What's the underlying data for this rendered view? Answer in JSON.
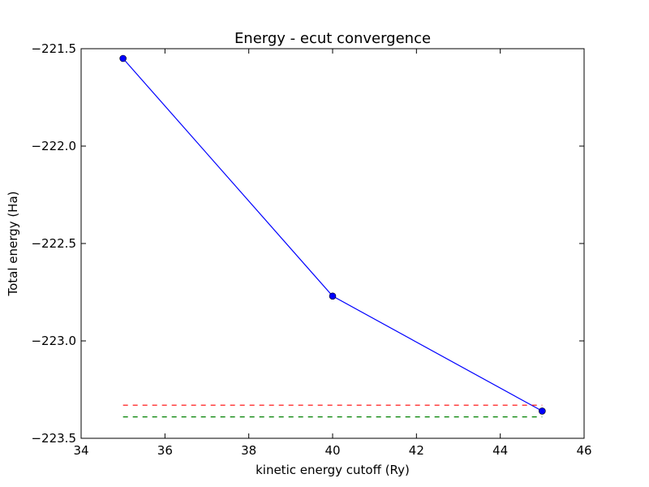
{
  "chart_data": {
    "type": "line",
    "title": "Energy - ecut convergence",
    "xlabel": "kinetic energy cutoff (Ry)",
    "ylabel": "Total energy (Ha)",
    "xlim": [
      34,
      46
    ],
    "ylim": [
      -223.5,
      -221.5
    ],
    "xticks": [
      34,
      36,
      38,
      40,
      42,
      44,
      46
    ],
    "yticks": [
      -221.5,
      -222.0,
      -222.5,
      -223.0,
      -223.5
    ],
    "xtick_labels": [
      "34",
      "36",
      "38",
      "40",
      "42",
      "44",
      "46"
    ],
    "ytick_labels": [
      "−221.5",
      "−222.0",
      "−222.5",
      "−223.0",
      "−223.5"
    ],
    "grid": false,
    "series": [
      {
        "x": [
          35,
          40,
          45
        ],
        "y": [
          -221.55,
          -222.77,
          -223.36
        ],
        "color": "#0000ff",
        "style": "solid",
        "markers": true
      },
      {
        "x": [
          35,
          45
        ],
        "y": [
          -223.33,
          -223.33
        ],
        "color": "#ff0000",
        "style": "dashed",
        "markers": false
      },
      {
        "x": [
          35,
          45
        ],
        "y": [
          -223.39,
          -223.39
        ],
        "color": "#008000",
        "style": "dashed",
        "markers": false
      }
    ]
  }
}
